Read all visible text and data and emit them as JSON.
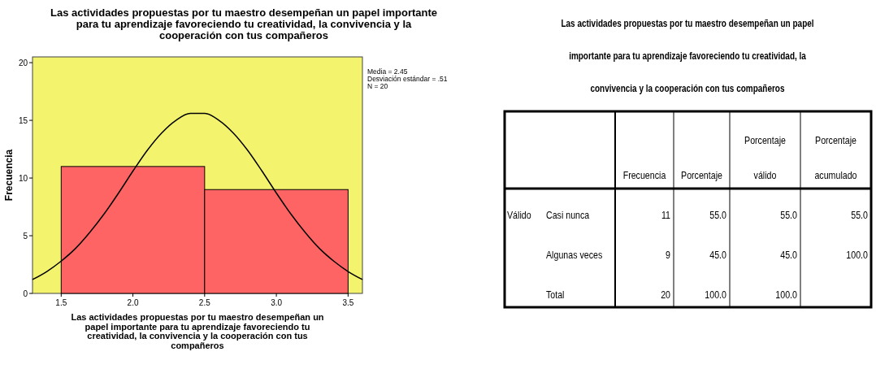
{
  "chart_data": [
    {
      "type": "histogram",
      "title": "Las actividades propuestas por tu maestro desempeñan un papel importante para tu aprendizaje favoreciendo tu creatividad, la convivencia y la cooperación con tus compañeros",
      "xlabel": "Las actividades propuestas por tu maestro desempeñan un papel importante para tu aprendizaje favoreciendo tu creatividad, la convivencia y la cooperación con tus compañeros",
      "ylabel": "Frecuencia",
      "bins": [
        1.5,
        2.5,
        3.5
      ],
      "values": [
        11,
        9
      ],
      "color": "#fe6464",
      "series": [
        {
          "type": "line",
          "color": "#000000",
          "x": [
            1.3,
            1.4,
            1.5,
            1.6,
            1.7,
            1.8,
            1.9,
            2.0,
            2.1,
            2.2,
            2.3,
            2.4,
            2.45,
            2.5,
            2.6,
            2.7,
            2.8,
            2.9,
            3.0,
            3.1,
            3.2,
            3.3,
            3.4,
            3.5,
            3.6
          ],
          "values": [
            1.2,
            1.9,
            2.8,
            3.9,
            5.3,
            6.9,
            8.7,
            10.6,
            12.4,
            13.9,
            15.0,
            15.6,
            15.6,
            15.6,
            15.0,
            13.9,
            12.4,
            10.6,
            8.7,
            6.9,
            5.3,
            3.9,
            2.8,
            1.9,
            1.2
          ]
        }
      ],
      "xlim": [
        1.3,
        3.6
      ],
      "xticks": [
        {
          "value": 1.5,
          "label": "1.5"
        },
        {
          "value": 2,
          "label": "2.0"
        },
        {
          "value": 2.5,
          "label": "2.5"
        },
        {
          "value": 3,
          "label": "3.0"
        },
        {
          "value": 3.5,
          "label": "3.5"
        }
      ],
      "ylim": [
        0,
        20.5
      ],
      "yticks": [
        0,
        5,
        10,
        15,
        20
      ],
      "annotations": [
        "Media = 2.45",
        "Desviación estándar = .51",
        "N = 20"
      ]
    },
    {
      "type": "other",
      "title": "Las actividades propuestas por tu maestro desempeñan un papel importante para tu aprendizaje favoreciendo tu creatividad, la convivencia y la cooperación con tus compañeros",
      "categories": [
        "Frecuencia",
        "Porcentaje",
        "Porcentaje válido",
        "Porcentaje acumulado"
      ],
      "y_categories": [
        "Casi nunca",
        "Algunas veces",
        "Total"
      ],
      "cell_labels": [
        [
          "11",
          "55.0",
          "55.0",
          "55.0"
        ],
        [
          "9",
          "45.0",
          "45.0",
          "100.0"
        ],
        [
          "20",
          "100.0",
          "100.0",
          null
        ]
      ],
      "annotations": [
        "Válido"
      ]
    }
  ]
}
